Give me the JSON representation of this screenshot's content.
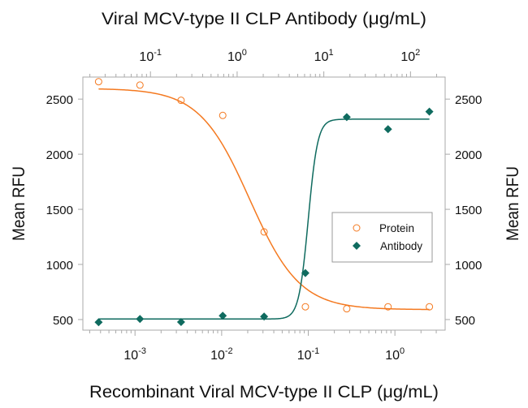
{
  "chart_data": {
    "type": "scatter",
    "title_top_axis": "Viral MCV-type II CLP Antibody (μg/mL)",
    "xlabel": "Recombinant Viral MCV-type II CLP (μg/mL)",
    "ylabel": "Mean RFU",
    "ylabel_right": "Mean RFU",
    "x_scale": "log",
    "x_top_scale": "log",
    "xlim": [
      0.00025,
      3.8
    ],
    "x_top_lim": [
      0.0166,
      251
    ],
    "ylim": [
      404,
      2700
    ],
    "yticks": [
      500,
      1000,
      1500,
      2000,
      2500
    ],
    "xticks": [
      {
        "value": 0.001,
        "base": "10",
        "exp": "-3"
      },
      {
        "value": 0.01,
        "base": "10",
        "exp": "-2"
      },
      {
        "value": 0.1,
        "base": "10",
        "exp": "-1"
      },
      {
        "value": 1,
        "base": "10",
        "exp": "0"
      }
    ],
    "x_top_ticks": [
      {
        "value": 0.1,
        "base": "10",
        "exp": "-1"
      },
      {
        "value": 1,
        "base": "10",
        "exp": "0"
      },
      {
        "value": 10,
        "base": "10",
        "exp": "1"
      },
      {
        "value": 100,
        "base": "10",
        "exp": "2"
      }
    ],
    "grid": false,
    "legend": "center-right",
    "series": [
      {
        "name": "Protein",
        "axis": "bottom",
        "marker": "open-circle",
        "color": "#f47920",
        "x": [
          0.00038,
          0.00114,
          0.0034,
          0.0103,
          0.0309,
          0.0926,
          0.278,
          0.833,
          2.5
        ],
        "y": [
          2658,
          2627,
          2489,
          2352,
          1295,
          616,
          598,
          616,
          616
        ],
        "fit": {
          "top": 2597,
          "bottom": 590,
          "ec50": 0.021,
          "hill": -1.5
        }
      },
      {
        "name": "Antibody",
        "axis": "bottom",
        "marker": "filled-diamond",
        "color": "#0f6b5f",
        "x": [
          0.00038,
          0.00114,
          0.0034,
          0.0103,
          0.0309,
          0.0926,
          0.278,
          0.833,
          2.5
        ],
        "y": [
          476,
          505,
          478,
          535,
          527,
          922,
          2337,
          2227,
          2386
        ],
        "fit": {
          "top": 2318,
          "bottom": 505,
          "ec50": 0.1,
          "hill": 8
        }
      }
    ]
  }
}
